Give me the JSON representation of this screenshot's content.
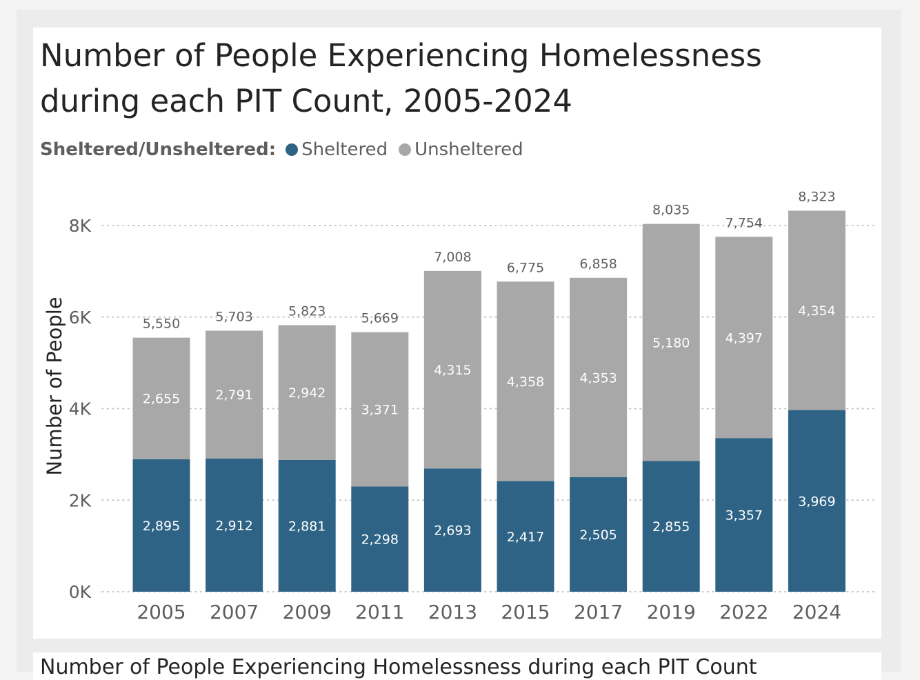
{
  "chart_data": {
    "type": "bar",
    "stacked": true,
    "title": "Number of People Experiencing Homelessness during each PIT Count, 2005-2024",
    "legend_title": "Sheltered/Unsheltered:",
    "legend_position": "top-left",
    "ylabel": "Number of People",
    "xlabel": "",
    "ylim": [
      0,
      8500
    ],
    "yticks": [
      0,
      2000,
      4000,
      6000,
      8000
    ],
    "ytick_labels": [
      "0K",
      "2K",
      "4K",
      "6K",
      "8K"
    ],
    "grid": true,
    "categories": [
      "2005",
      "2007",
      "2009",
      "2011",
      "2013",
      "2015",
      "2017",
      "2019",
      "2022",
      "2024"
    ],
    "series": [
      {
        "name": "Sheltered",
        "color": "#2f6386",
        "values": [
          2895,
          2912,
          2881,
          2298,
          2693,
          2417,
          2505,
          2855,
          3357,
          3969
        ],
        "labels": [
          "2,895",
          "2,912",
          "2,881",
          "2,298",
          "2,693",
          "2,417",
          "2,505",
          "2,855",
          "3,357",
          "3,969"
        ]
      },
      {
        "name": "Unsheltered",
        "color": "#a8a8a8",
        "values": [
          2655,
          2791,
          2942,
          3371,
          4315,
          4358,
          4353,
          5180,
          4397,
          4354
        ],
        "labels": [
          "2,655",
          "2,791",
          "2,942",
          "3,371",
          "4,315",
          "4,358",
          "4,353",
          "5,180",
          "4,397",
          "4,354"
        ]
      }
    ],
    "totals": [
      5550,
      5703,
      5823,
      5669,
      7008,
      6775,
      6858,
      8035,
      7754,
      8323
    ],
    "total_labels": [
      "5,550",
      "5,703",
      "5,823",
      "5,669",
      "7,008",
      "6,775",
      "6,858",
      "8,035",
      "7,754",
      "8,323"
    ]
  },
  "next_card_title": "Number of People Experiencing Homelessness during each PIT Count"
}
